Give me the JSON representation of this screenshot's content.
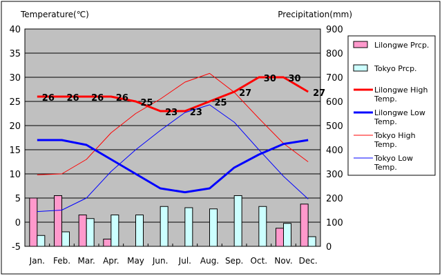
{
  "chart_data": {
    "type": "bar+line",
    "left_axis": {
      "title": "Temperature(℃)",
      "min": -5,
      "max": 40,
      "step": 5,
      "tick_labels": [
        "-5",
        "0",
        "5",
        "10",
        "15",
        "20",
        "25",
        "30",
        "35",
        "40"
      ]
    },
    "right_axis": {
      "title": "Precipitation(mm)",
      "min": 0,
      "max": 900,
      "step": 100,
      "tick_labels": [
        "0",
        "100",
        "200",
        "300",
        "400",
        "500",
        "600",
        "700",
        "800",
        "900"
      ]
    },
    "categories": [
      "Jan.",
      "Feb.",
      "Mar.",
      "Apr.",
      "May",
      "Jun.",
      "Jul.",
      "Aug.",
      "Sep.",
      "Oct.",
      "Nov.",
      "Dec."
    ],
    "bar_series": [
      {
        "name": "Lilongwe Prcp.",
        "color": "#ff99cc",
        "values": [
          200,
          210,
          130,
          30,
          0,
          0,
          0,
          0,
          0,
          0,
          75,
          175
        ]
      },
      {
        "name": "Tokyo Prcp.",
        "color": "#ccffff",
        "values": [
          45,
          60,
          115,
          130,
          130,
          165,
          160,
          155,
          210,
          165,
          95,
          40
        ]
      }
    ],
    "line_series": [
      {
        "name": "Lilongwe High Temp.",
        "color": "#ff0000",
        "width": "thick",
        "values": [
          26,
          26,
          26,
          26,
          25,
          23,
          23,
          25,
          27,
          30,
          30,
          27
        ]
      },
      {
        "name": "Lilongwe Low Temp.",
        "color": "#0000ff",
        "width": "thick",
        "values": [
          17,
          17,
          16,
          13,
          10,
          7,
          6.2,
          7,
          11.3,
          14,
          16.2,
          17
        ]
      },
      {
        "name": "Tokyo High Temp.",
        "color": "#ff0000",
        "width": "thin",
        "values": [
          9.8,
          10,
          13,
          18.5,
          22.5,
          25.5,
          29,
          30.8,
          26.9,
          21.5,
          16.3,
          12.5
        ]
      },
      {
        "name": "Tokyo Low Temp.",
        "color": "#0000ff",
        "width": "thin",
        "values": [
          2.2,
          2.5,
          5,
          10.5,
          15,
          19,
          22.7,
          24.3,
          20.7,
          15,
          9.5,
          4.8
        ]
      }
    ],
    "data_labels": [
      "26",
      "26",
      "26",
      "26",
      "25",
      "23",
      "23",
      "25",
      "27",
      "30",
      "30",
      "27"
    ],
    "legend_position": "right"
  }
}
